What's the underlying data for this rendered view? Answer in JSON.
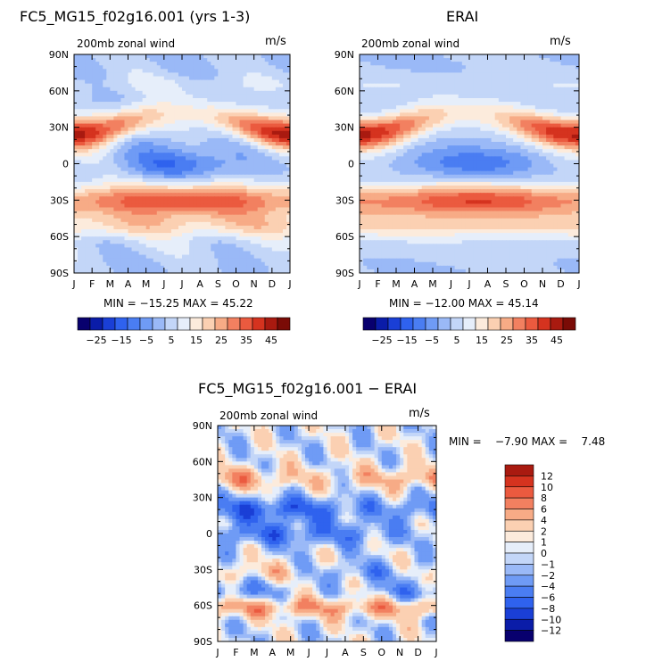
{
  "months": [
    "J",
    "F",
    "M",
    "A",
    "M",
    "J",
    "J",
    "A",
    "S",
    "O",
    "N",
    "D",
    "J"
  ],
  "lat_ticks": [
    "90N",
    "60N",
    "30N",
    "0",
    "30S",
    "60S",
    "90S"
  ],
  "chart_data": [
    {
      "type": "heatmap",
      "title": "FC5_MG15_f02g16.001 (yrs 1-3)",
      "subtitle": "200mb zonal wind",
      "units": "m/s",
      "stats": "MIN = −15.25 MAX =   45.22",
      "x": "months Jan..Jan",
      "y": "latitude 90N..90S",
      "colorbar_labels": [
        "−25",
        "−15",
        "−5",
        "5",
        "15",
        "25",
        "35",
        "45"
      ]
    },
    {
      "type": "heatmap",
      "title": "ERAI",
      "subtitle": "200mb zonal wind",
      "units": "m/s",
      "stats": "MIN = −12.00 MAX =   45.14",
      "colorbar_labels": [
        "−25",
        "−15",
        "−5",
        "5",
        "15",
        "25",
        "35",
        "45"
      ]
    },
    {
      "type": "heatmap",
      "title": "FC5_MG15_f02g16.001 − ERAI",
      "subtitle": "200mb zonal wind",
      "units": "m/s",
      "stats": "MIN =    −7.90 MAX =    7.48",
      "colorbar_labels": [
        "12",
        "10",
        "8",
        "6",
        "4",
        "2",
        "1",
        "0",
        "−1",
        "−2",
        "−4",
        "−6",
        "−8",
        "−10",
        "−12"
      ]
    }
  ],
  "colors": {
    "abs_scale": [
      "#08006e",
      "#0a1ca8",
      "#1a3fd6",
      "#2f62ee",
      "#4a7df2",
      "#6f9bf5",
      "#9ab9f7",
      "#c3d6f8",
      "#e6eefa",
      "#fcebdc",
      "#fbd0b2",
      "#f7ab86",
      "#f28060",
      "#eb5a3f",
      "#d5331f",
      "#a91a10",
      "#7a0b06"
    ],
    "diff_scale": [
      "#08006e",
      "#0a1ca8",
      "#1a3fd6",
      "#2f62ee",
      "#4a7df2",
      "#6f9bf5",
      "#9ab9f7",
      "#c3d6f8",
      "#e6eefa",
      "#fcebdc",
      "#fbd0b2",
      "#f7ab86",
      "#f28060",
      "#eb5a3f",
      "#d5331f",
      "#a91a10"
    ]
  }
}
